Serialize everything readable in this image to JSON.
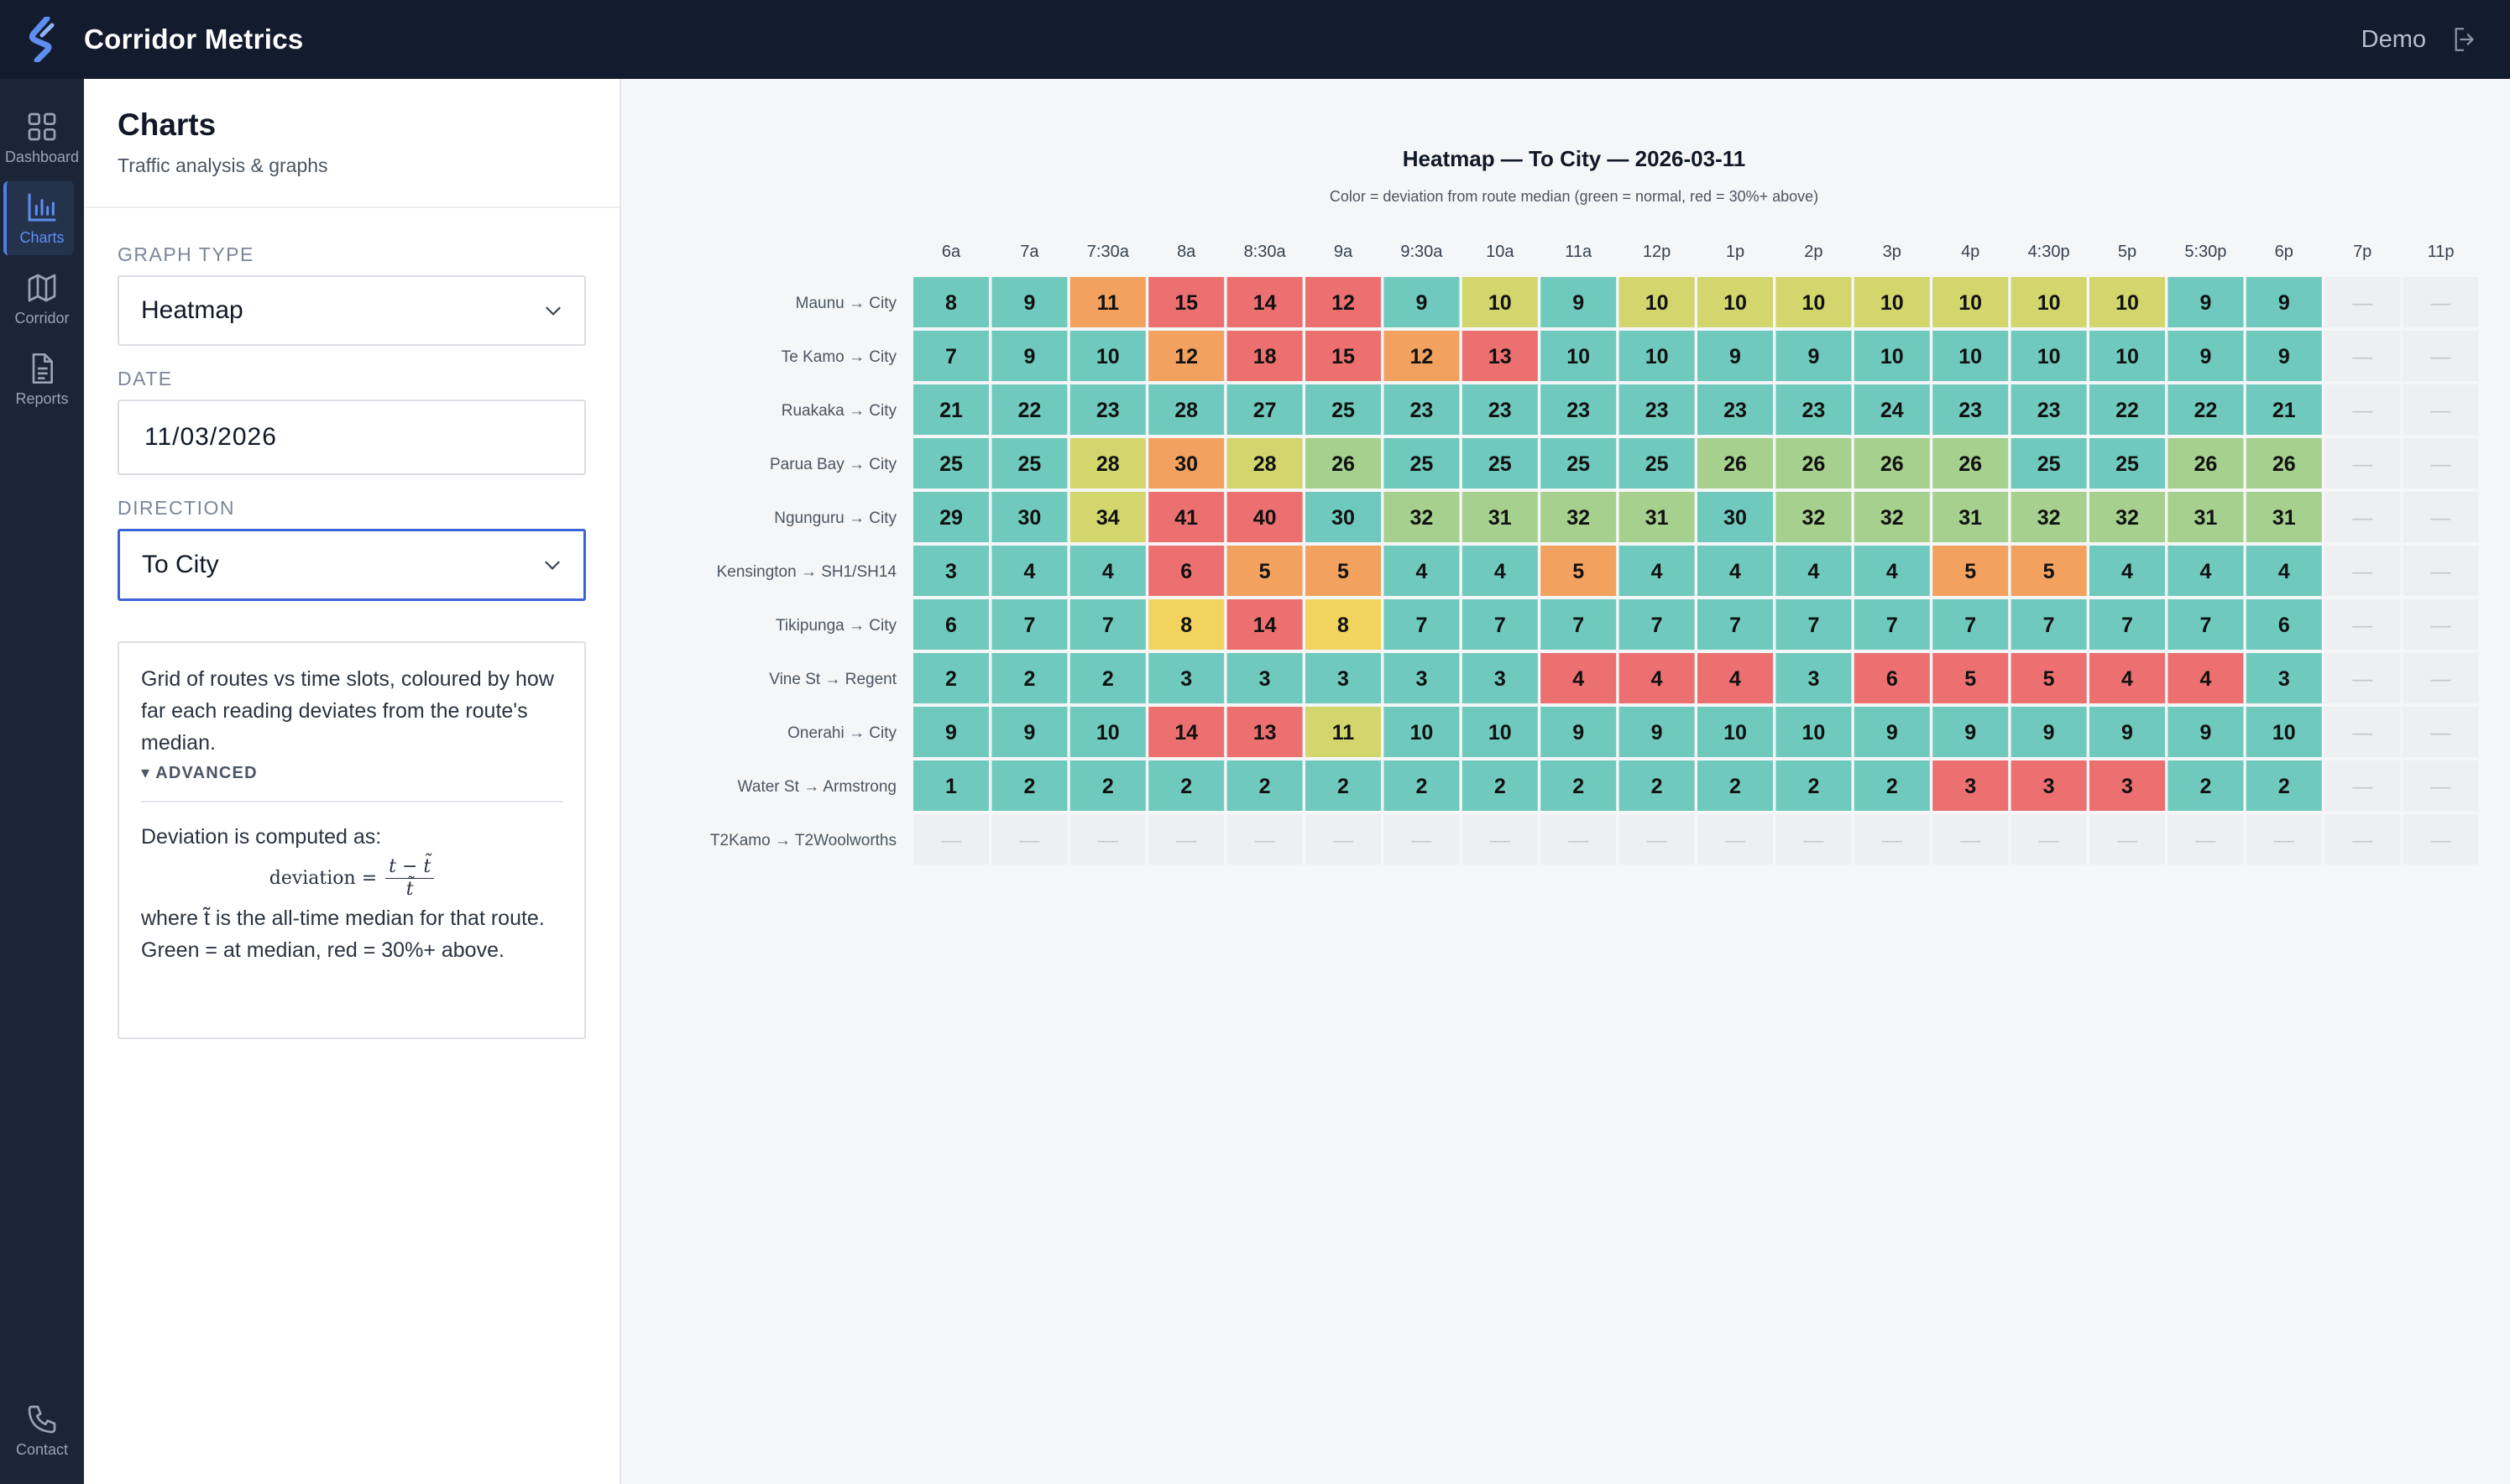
{
  "app": {
    "title": "Corridor Metrics",
    "user": "Demo"
  },
  "nav": [
    {
      "label": "Dashboard",
      "icon": "grid-icon",
      "active": false
    },
    {
      "label": "Charts",
      "icon": "bar-chart-icon",
      "active": true
    },
    {
      "label": "Corridor",
      "icon": "map-icon",
      "active": false
    },
    {
      "label": "Reports",
      "icon": "document-icon",
      "active": false
    },
    {
      "label": "Contact",
      "icon": "phone-icon",
      "active": false
    }
  ],
  "panel": {
    "title": "Charts",
    "subtitle": "Traffic analysis & graphs",
    "graph_type": {
      "label": "GRAPH TYPE",
      "value": "Heatmap"
    },
    "date": {
      "label": "DATE",
      "value": "11/03/2026"
    },
    "direction": {
      "label": "DIRECTION",
      "value": "To City"
    },
    "info": {
      "description": "Grid of routes vs time slots, coloured by how far each reading deviates from the route's median.",
      "advanced_label": "▾ ADVANCED",
      "deviation_intro": "Deviation is computed as:",
      "formula_lhs": "deviation =",
      "formula_num": "t − t̃",
      "formula_den": "t̃",
      "deviation_outro": "where t̃ is the all-time median for that route. Green = at median, red = 30%+ above."
    }
  },
  "colors": {
    "green": "#6fcabd",
    "light_green": "#a6d08d",
    "yellow_green": "#d3d56d",
    "yellow": "#f1d35e",
    "orange": "#f2a25e",
    "red": "#ec7070",
    "empty": "#eeeff0",
    "dash": "#c3c7cd"
  },
  "chart_data": {
    "type": "heatmap",
    "title": "Heatmap — To City — 2026-03-11",
    "subtitle": "Color = deviation from route median (green = normal, red = 30%+ above)",
    "columns": [
      "6a",
      "7a",
      "7:30a",
      "8a",
      "8:30a",
      "9a",
      "9:30a",
      "10a",
      "11a",
      "12p",
      "1p",
      "2p",
      "3p",
      "4p",
      "4:30p",
      "5p",
      "5:30p",
      "6p",
      "7p",
      "11p"
    ],
    "rows": [
      {
        "route": "Maunu → City",
        "values": [
          8,
          9,
          11,
          15,
          14,
          12,
          9,
          10,
          9,
          10,
          10,
          10,
          10,
          10,
          10,
          10,
          9,
          9,
          null,
          null
        ],
        "levels": [
          "g",
          "g",
          "o",
          "r",
          "r",
          "r",
          "g",
          "yg",
          "g",
          "yg",
          "yg",
          "yg",
          "yg",
          "yg",
          "yg",
          "yg",
          "g",
          "g",
          null,
          null
        ]
      },
      {
        "route": "Te Kamo → City",
        "values": [
          7,
          9,
          10,
          12,
          18,
          15,
          12,
          13,
          10,
          10,
          9,
          9,
          10,
          10,
          10,
          10,
          9,
          9,
          null,
          null
        ],
        "levels": [
          "g",
          "g",
          "g",
          "o",
          "r",
          "r",
          "o",
          "r",
          "g",
          "g",
          "g",
          "g",
          "g",
          "g",
          "g",
          "g",
          "g",
          "g",
          null,
          null
        ]
      },
      {
        "route": "Ruakaka → City",
        "values": [
          21,
          22,
          23,
          28,
          27,
          25,
          23,
          23,
          23,
          23,
          23,
          23,
          24,
          23,
          23,
          22,
          22,
          21,
          null,
          null
        ],
        "levels": [
          "g",
          "g",
          "g",
          "g",
          "g",
          "g",
          "g",
          "g",
          "g",
          "g",
          "g",
          "g",
          "g",
          "g",
          "g",
          "g",
          "g",
          "g",
          null,
          null
        ]
      },
      {
        "route": "Parua Bay → City",
        "values": [
          25,
          25,
          28,
          30,
          28,
          26,
          25,
          25,
          25,
          25,
          26,
          26,
          26,
          26,
          25,
          25,
          26,
          26,
          null,
          null
        ],
        "levels": [
          "g",
          "g",
          "yg",
          "o",
          "yg",
          "lg",
          "g",
          "g",
          "g",
          "g",
          "lg",
          "lg",
          "lg",
          "lg",
          "g",
          "g",
          "lg",
          "lg",
          null,
          null
        ]
      },
      {
        "route": "Ngunguru → City",
        "values": [
          29,
          30,
          34,
          41,
          40,
          30,
          32,
          31,
          32,
          31,
          30,
          32,
          32,
          31,
          32,
          32,
          31,
          31,
          null,
          null
        ],
        "levels": [
          "g",
          "g",
          "yg",
          "r",
          "r",
          "g",
          "lg",
          "lg",
          "lg",
          "lg",
          "g",
          "lg",
          "lg",
          "lg",
          "lg",
          "lg",
          "lg",
          "lg",
          null,
          null
        ]
      },
      {
        "route": "Kensington → SH1/SH14",
        "values": [
          3,
          4,
          4,
          6,
          5,
          5,
          4,
          4,
          5,
          4,
          4,
          4,
          4,
          5,
          5,
          4,
          4,
          4,
          null,
          null
        ],
        "levels": [
          "g",
          "g",
          "g",
          "r",
          "o",
          "o",
          "g",
          "g",
          "o",
          "g",
          "g",
          "g",
          "g",
          "o",
          "o",
          "g",
          "g",
          "g",
          null,
          null
        ]
      },
      {
        "route": "Tikipunga → City",
        "values": [
          6,
          7,
          7,
          8,
          14,
          8,
          7,
          7,
          7,
          7,
          7,
          7,
          7,
          7,
          7,
          7,
          7,
          6,
          null,
          null
        ],
        "levels": [
          "g",
          "g",
          "g",
          "y",
          "r",
          "y",
          "g",
          "g",
          "g",
          "g",
          "g",
          "g",
          "g",
          "g",
          "g",
          "g",
          "g",
          "g",
          null,
          null
        ]
      },
      {
        "route": "Vine St → Regent",
        "values": [
          2,
          2,
          2,
          3,
          3,
          3,
          3,
          3,
          4,
          4,
          4,
          3,
          6,
          5,
          5,
          4,
          4,
          3,
          null,
          null
        ],
        "levels": [
          "g",
          "g",
          "g",
          "g",
          "g",
          "g",
          "g",
          "g",
          "r",
          "r",
          "r",
          "g",
          "r",
          "r",
          "r",
          "r",
          "r",
          "g",
          null,
          null
        ]
      },
      {
        "route": "Onerahi → City",
        "values": [
          9,
          9,
          10,
          14,
          13,
          11,
          10,
          10,
          9,
          9,
          10,
          10,
          9,
          9,
          9,
          9,
          9,
          10,
          null,
          null
        ],
        "levels": [
          "g",
          "g",
          "g",
          "r",
          "r",
          "yg",
          "g",
          "g",
          "g",
          "g",
          "g",
          "g",
          "g",
          "g",
          "g",
          "g",
          "g",
          "g",
          null,
          null
        ]
      },
      {
        "route": "Water St → Armstrong",
        "values": [
          1,
          2,
          2,
          2,
          2,
          2,
          2,
          2,
          2,
          2,
          2,
          2,
          2,
          3,
          3,
          3,
          2,
          2,
          null,
          null
        ],
        "levels": [
          "g",
          "g",
          "g",
          "g",
          "g",
          "g",
          "g",
          "g",
          "g",
          "g",
          "g",
          "g",
          "g",
          "r",
          "r",
          "r",
          "g",
          "g",
          null,
          null
        ]
      },
      {
        "route": "T2Kamo → T2Woolworths",
        "values": [
          null,
          null,
          null,
          null,
          null,
          null,
          null,
          null,
          null,
          null,
          null,
          null,
          null,
          null,
          null,
          null,
          null,
          null,
          null,
          null
        ],
        "levels": [
          null,
          null,
          null,
          null,
          null,
          null,
          null,
          null,
          null,
          null,
          null,
          null,
          null,
          null,
          null,
          null,
          null,
          null,
          null,
          null
        ]
      }
    ],
    "missing_symbol": "—",
    "legend": "none"
  }
}
